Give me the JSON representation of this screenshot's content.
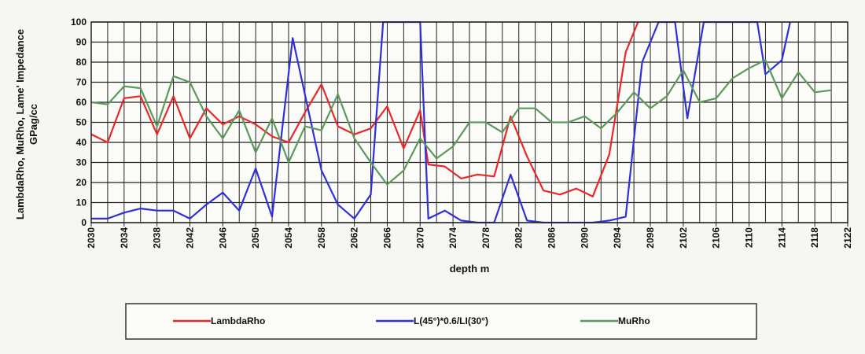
{
  "chart_data": {
    "type": "line",
    "title": "",
    "xlabel": "depth m",
    "ylabel_lines": [
      "LambdaRho, MuRho, Lame' Impedance",
      "GPag/cc"
    ],
    "x_ticks": [
      2030,
      2034,
      2038,
      2042,
      2046,
      2050,
      2054,
      2058,
      2062,
      2066,
      2070,
      2074,
      2078,
      2082,
      2086,
      2090,
      2094,
      2098,
      2102,
      2106,
      2110,
      2114,
      2118,
      2122
    ],
    "xlim": [
      2030,
      2122
    ],
    "ylim": [
      0,
      100
    ],
    "y_ticks": [
      0,
      10,
      20,
      30,
      40,
      50,
      60,
      70,
      80,
      90,
      100
    ],
    "grid": true,
    "legend_position": "bottom",
    "series": [
      {
        "name": "LambdaRho",
        "color": "#e8282b",
        "points": [
          [
            2030,
            44
          ],
          [
            2032,
            40
          ],
          [
            2034,
            62
          ],
          [
            2036,
            63
          ],
          [
            2038,
            44
          ],
          [
            2040,
            63
          ],
          [
            2042,
            42
          ],
          [
            2044,
            57
          ],
          [
            2046,
            49
          ],
          [
            2048,
            53
          ],
          [
            2050,
            49
          ],
          [
            2052,
            43
          ],
          [
            2054,
            40
          ],
          [
            2056,
            55
          ],
          [
            2058,
            69
          ],
          [
            2060,
            48
          ],
          [
            2062,
            44
          ],
          [
            2064,
            47
          ],
          [
            2066,
            58
          ],
          [
            2068,
            37
          ],
          [
            2070,
            56
          ],
          [
            2071,
            29
          ],
          [
            2073,
            28
          ],
          [
            2075,
            22
          ],
          [
            2077,
            24
          ],
          [
            2079,
            23
          ],
          [
            2081,
            53
          ],
          [
            2083,
            33
          ],
          [
            2085,
            16
          ],
          [
            2087,
            14
          ],
          [
            2089,
            17
          ],
          [
            2091,
            13
          ],
          [
            2093,
            34
          ],
          [
            2095,
            85
          ],
          [
            2096.5,
            100
          ]
        ]
      },
      {
        "name": "L(45°)*0.6/LI(30°)",
        "color": "#3030d8",
        "points": [
          [
            2030,
            2
          ],
          [
            2032,
            2
          ],
          [
            2034,
            5
          ],
          [
            2036,
            7
          ],
          [
            2038,
            6
          ],
          [
            2040,
            6
          ],
          [
            2042,
            2
          ],
          [
            2044,
            9
          ],
          [
            2046,
            15
          ],
          [
            2048,
            6
          ],
          [
            2050,
            27
          ],
          [
            2052,
            3
          ],
          [
            2054.5,
            92
          ],
          [
            2058,
            26
          ],
          [
            2060,
            9
          ],
          [
            2062,
            2
          ],
          [
            2064,
            14
          ],
          [
            2065.5,
            100
          ],
          [
            2070,
            100
          ],
          [
            2071,
            2
          ],
          [
            2073,
            6
          ],
          [
            2075,
            1
          ],
          [
            2077,
            0
          ],
          [
            2079,
            0
          ],
          [
            2081,
            24
          ],
          [
            2083,
            1
          ],
          [
            2085,
            0
          ],
          [
            2087,
            0
          ],
          [
            2089,
            0
          ],
          [
            2091,
            0
          ],
          [
            2093,
            1
          ],
          [
            2095,
            3
          ],
          [
            2097,
            80
          ],
          [
            2099,
            100
          ],
          [
            2101,
            100
          ],
          [
            2102.5,
            52
          ],
          [
            2104.5,
            100
          ],
          [
            2111,
            100
          ],
          [
            2112,
            74
          ],
          [
            2114,
            81
          ],
          [
            2115,
            100
          ]
        ]
      },
      {
        "name": "MuRho",
        "color": "#5a9a5a",
        "points": [
          [
            2030,
            60
          ],
          [
            2032,
            59
          ],
          [
            2034,
            68
          ],
          [
            2036,
            67
          ],
          [
            2038,
            48
          ],
          [
            2040,
            73
          ],
          [
            2042,
            70
          ],
          [
            2044,
            53
          ],
          [
            2046,
            42
          ],
          [
            2048,
            56
          ],
          [
            2050,
            35
          ],
          [
            2052,
            52
          ],
          [
            2054,
            30
          ],
          [
            2056,
            48
          ],
          [
            2058,
            46
          ],
          [
            2060,
            64
          ],
          [
            2062,
            42
          ],
          [
            2064,
            30
          ],
          [
            2066,
            19
          ],
          [
            2068,
            26
          ],
          [
            2070,
            42
          ],
          [
            2072,
            32
          ],
          [
            2074,
            38
          ],
          [
            2076,
            50
          ],
          [
            2078,
            50
          ],
          [
            2080,
            45
          ],
          [
            2082,
            57
          ],
          [
            2084,
            57
          ],
          [
            2086,
            50
          ],
          [
            2088,
            50
          ],
          [
            2090,
            53
          ],
          [
            2092,
            47
          ],
          [
            2094,
            55
          ],
          [
            2096,
            65
          ],
          [
            2098,
            57
          ],
          [
            2100,
            63
          ],
          [
            2102,
            76
          ],
          [
            2104,
            60
          ],
          [
            2106,
            62
          ],
          [
            2108,
            72
          ],
          [
            2110,
            77
          ],
          [
            2112,
            81
          ],
          [
            2114,
            62
          ],
          [
            2116,
            75
          ],
          [
            2118,
            65
          ],
          [
            2120,
            66
          ]
        ]
      }
    ]
  }
}
